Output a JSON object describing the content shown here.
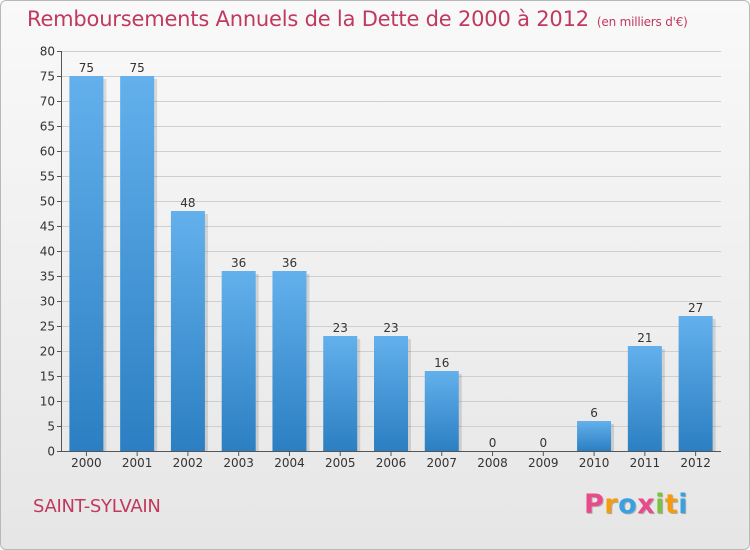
{
  "header": {
    "title": "Remboursements Annuels de la Dette de 2000 à 2012",
    "unit": "(en milliers d'€)"
  },
  "footer": {
    "place": "SAINT-SYLVAIN",
    "logo": {
      "letters": [
        "P",
        "r",
        "o",
        "x",
        "i",
        "t",
        "i"
      ],
      "colors": [
        "#e84a8c",
        "#f39c12",
        "#3aa0e0",
        "#e84a8c",
        "#7cc242",
        "#f39c12",
        "#3aa0e0"
      ]
    }
  },
  "colors": {
    "bar_light": "#63b0ec",
    "bar_dark": "#2b7fc2",
    "axis": "#555555",
    "grid": "#cfcfcf"
  },
  "chart_data": {
    "type": "bar",
    "title": "Remboursements Annuels de la Dette de 2000 à 2012",
    "subtitle": "(en milliers d'€)",
    "categories": [
      "2000",
      "2001",
      "2002",
      "2003",
      "2004",
      "2005",
      "2006",
      "2007",
      "2008",
      "2009",
      "2010",
      "2011",
      "2012"
    ],
    "values": [
      75,
      75,
      48,
      36,
      36,
      23,
      23,
      16,
      0,
      0,
      6,
      21,
      27
    ],
    "ylim": [
      0,
      80
    ],
    "yticks": [
      0,
      5,
      10,
      15,
      20,
      25,
      30,
      35,
      40,
      45,
      50,
      55,
      60,
      65,
      70,
      75,
      80
    ],
    "grid": true,
    "data_labels": true
  }
}
